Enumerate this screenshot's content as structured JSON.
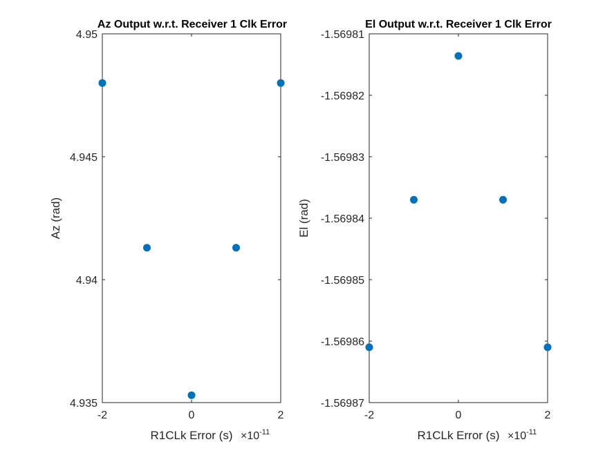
{
  "chart_data": [
    {
      "type": "scatter",
      "title": "Az Output w.r.t. Receiver 1 Clk Error",
      "xlabel": "R1CLk Error (s)",
      "x_exponent_base": "×10",
      "x_exponent": "-11",
      "ylabel": "Az (rad)",
      "xlim": [
        -2,
        2
      ],
      "ylim": [
        4.935,
        4.95
      ],
      "xticks": [
        -2,
        0,
        2
      ],
      "xtick_labels": [
        "-2",
        "0",
        "2"
      ],
      "yticks": [
        4.935,
        4.94,
        4.945,
        4.95
      ],
      "ytick_labels": [
        "4.935",
        "4.94",
        "4.945",
        "4.95"
      ],
      "grid": false,
      "marker_color": "#0072BD",
      "x": [
        -2,
        -1,
        0,
        1,
        2
      ],
      "y": [
        4.948,
        4.9413,
        4.9353,
        4.9413,
        4.948
      ]
    },
    {
      "type": "scatter",
      "title": "El Output w.r.t. Receiver 1 Clk Error",
      "xlabel": "R1CLk Error (s)",
      "x_exponent_base": "×10",
      "x_exponent": "-11",
      "ylabel": "El (rad)",
      "xlim": [
        -2,
        2
      ],
      "ylim": [
        -1.56987,
        -1.56981
      ],
      "xticks": [
        -2,
        0,
        2
      ],
      "xtick_labels": [
        "-2",
        "0",
        "2"
      ],
      "yticks": [
        -1.56987,
        -1.56986,
        -1.56985,
        -1.56984,
        -1.56983,
        -1.56982,
        -1.56981
      ],
      "ytick_labels": [
        "-1.56987",
        "-1.56986",
        "-1.56985",
        "-1.56984",
        "-1.56983",
        "-1.56982",
        "-1.56981"
      ],
      "grid": false,
      "marker_color": "#0072BD",
      "x": [
        -2,
        -1,
        0,
        1,
        2
      ],
      "y": [
        -1.569861,
        -1.569837,
        -1.5698136,
        -1.569837,
        -1.569861
      ]
    }
  ]
}
